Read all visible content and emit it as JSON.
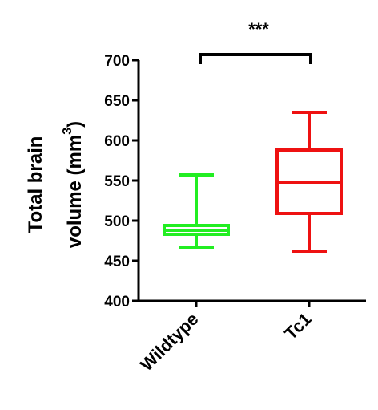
{
  "chart_data": {
    "type": "box",
    "ylabel": {
      "line1": "Total brain",
      "line2": "volume (mm",
      "superscript": "3",
      "close": ")"
    },
    "annotation": "***",
    "categories": [
      "Wildtype",
      "Tc1"
    ],
    "boxes": [
      {
        "min": 467,
        "q1": 483,
        "median": 488,
        "q3": 494,
        "max": 557,
        "color": "#22ee22"
      },
      {
        "min": 462,
        "q1": 509,
        "median": 548,
        "q3": 588,
        "max": 635,
        "color": "#ee1111"
      }
    ],
    "ylim": [
      400,
      700
    ],
    "yticks": [
      400,
      450,
      500,
      550,
      600,
      650,
      700
    ]
  }
}
